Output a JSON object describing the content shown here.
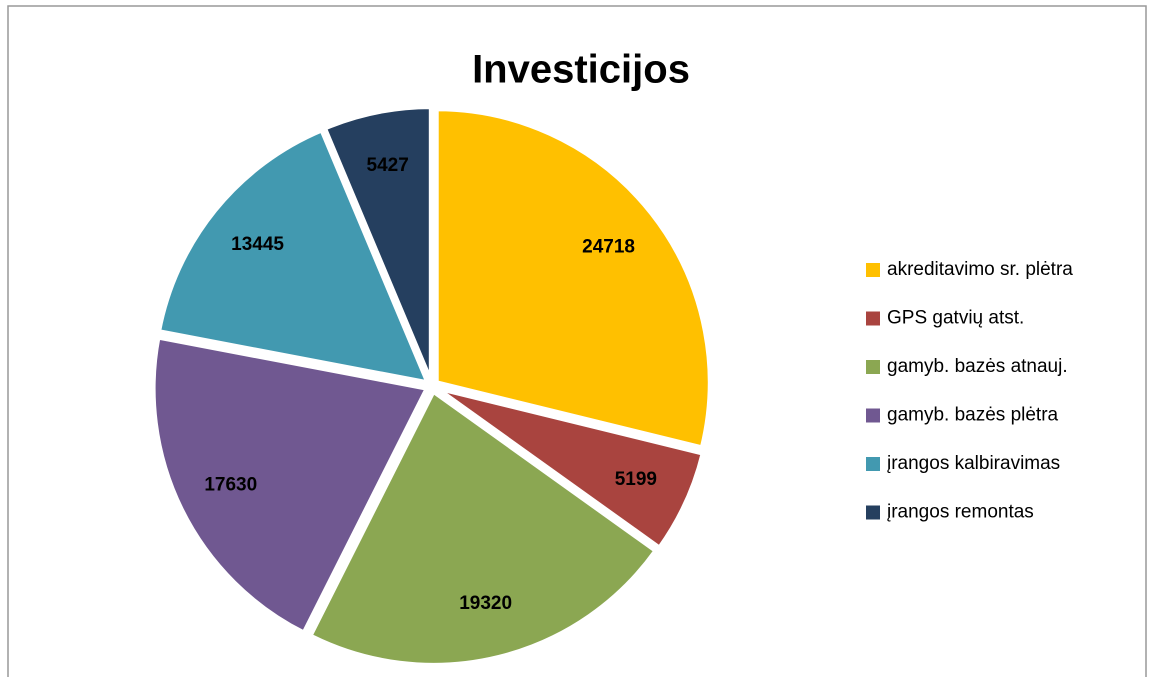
{
  "chart_data": {
    "type": "pie",
    "title": "Investicijos",
    "categories": [
      "akreditavimo sr. plėtra",
      "GPS gatvių atst.",
      "gamyb. bazės  atnauj.",
      "gamyb. bazės  plėtra",
      "įrangos kalbiravimas",
      "įrangos remontas"
    ],
    "values": [
      24718,
      5199,
      19320,
      17630,
      13445,
      5427
    ],
    "colors": [
      "#FFC000",
      "#A9443F",
      "#8BA752",
      "#705891",
      "#4299B0",
      "#253F5F"
    ],
    "legend": "right"
  }
}
